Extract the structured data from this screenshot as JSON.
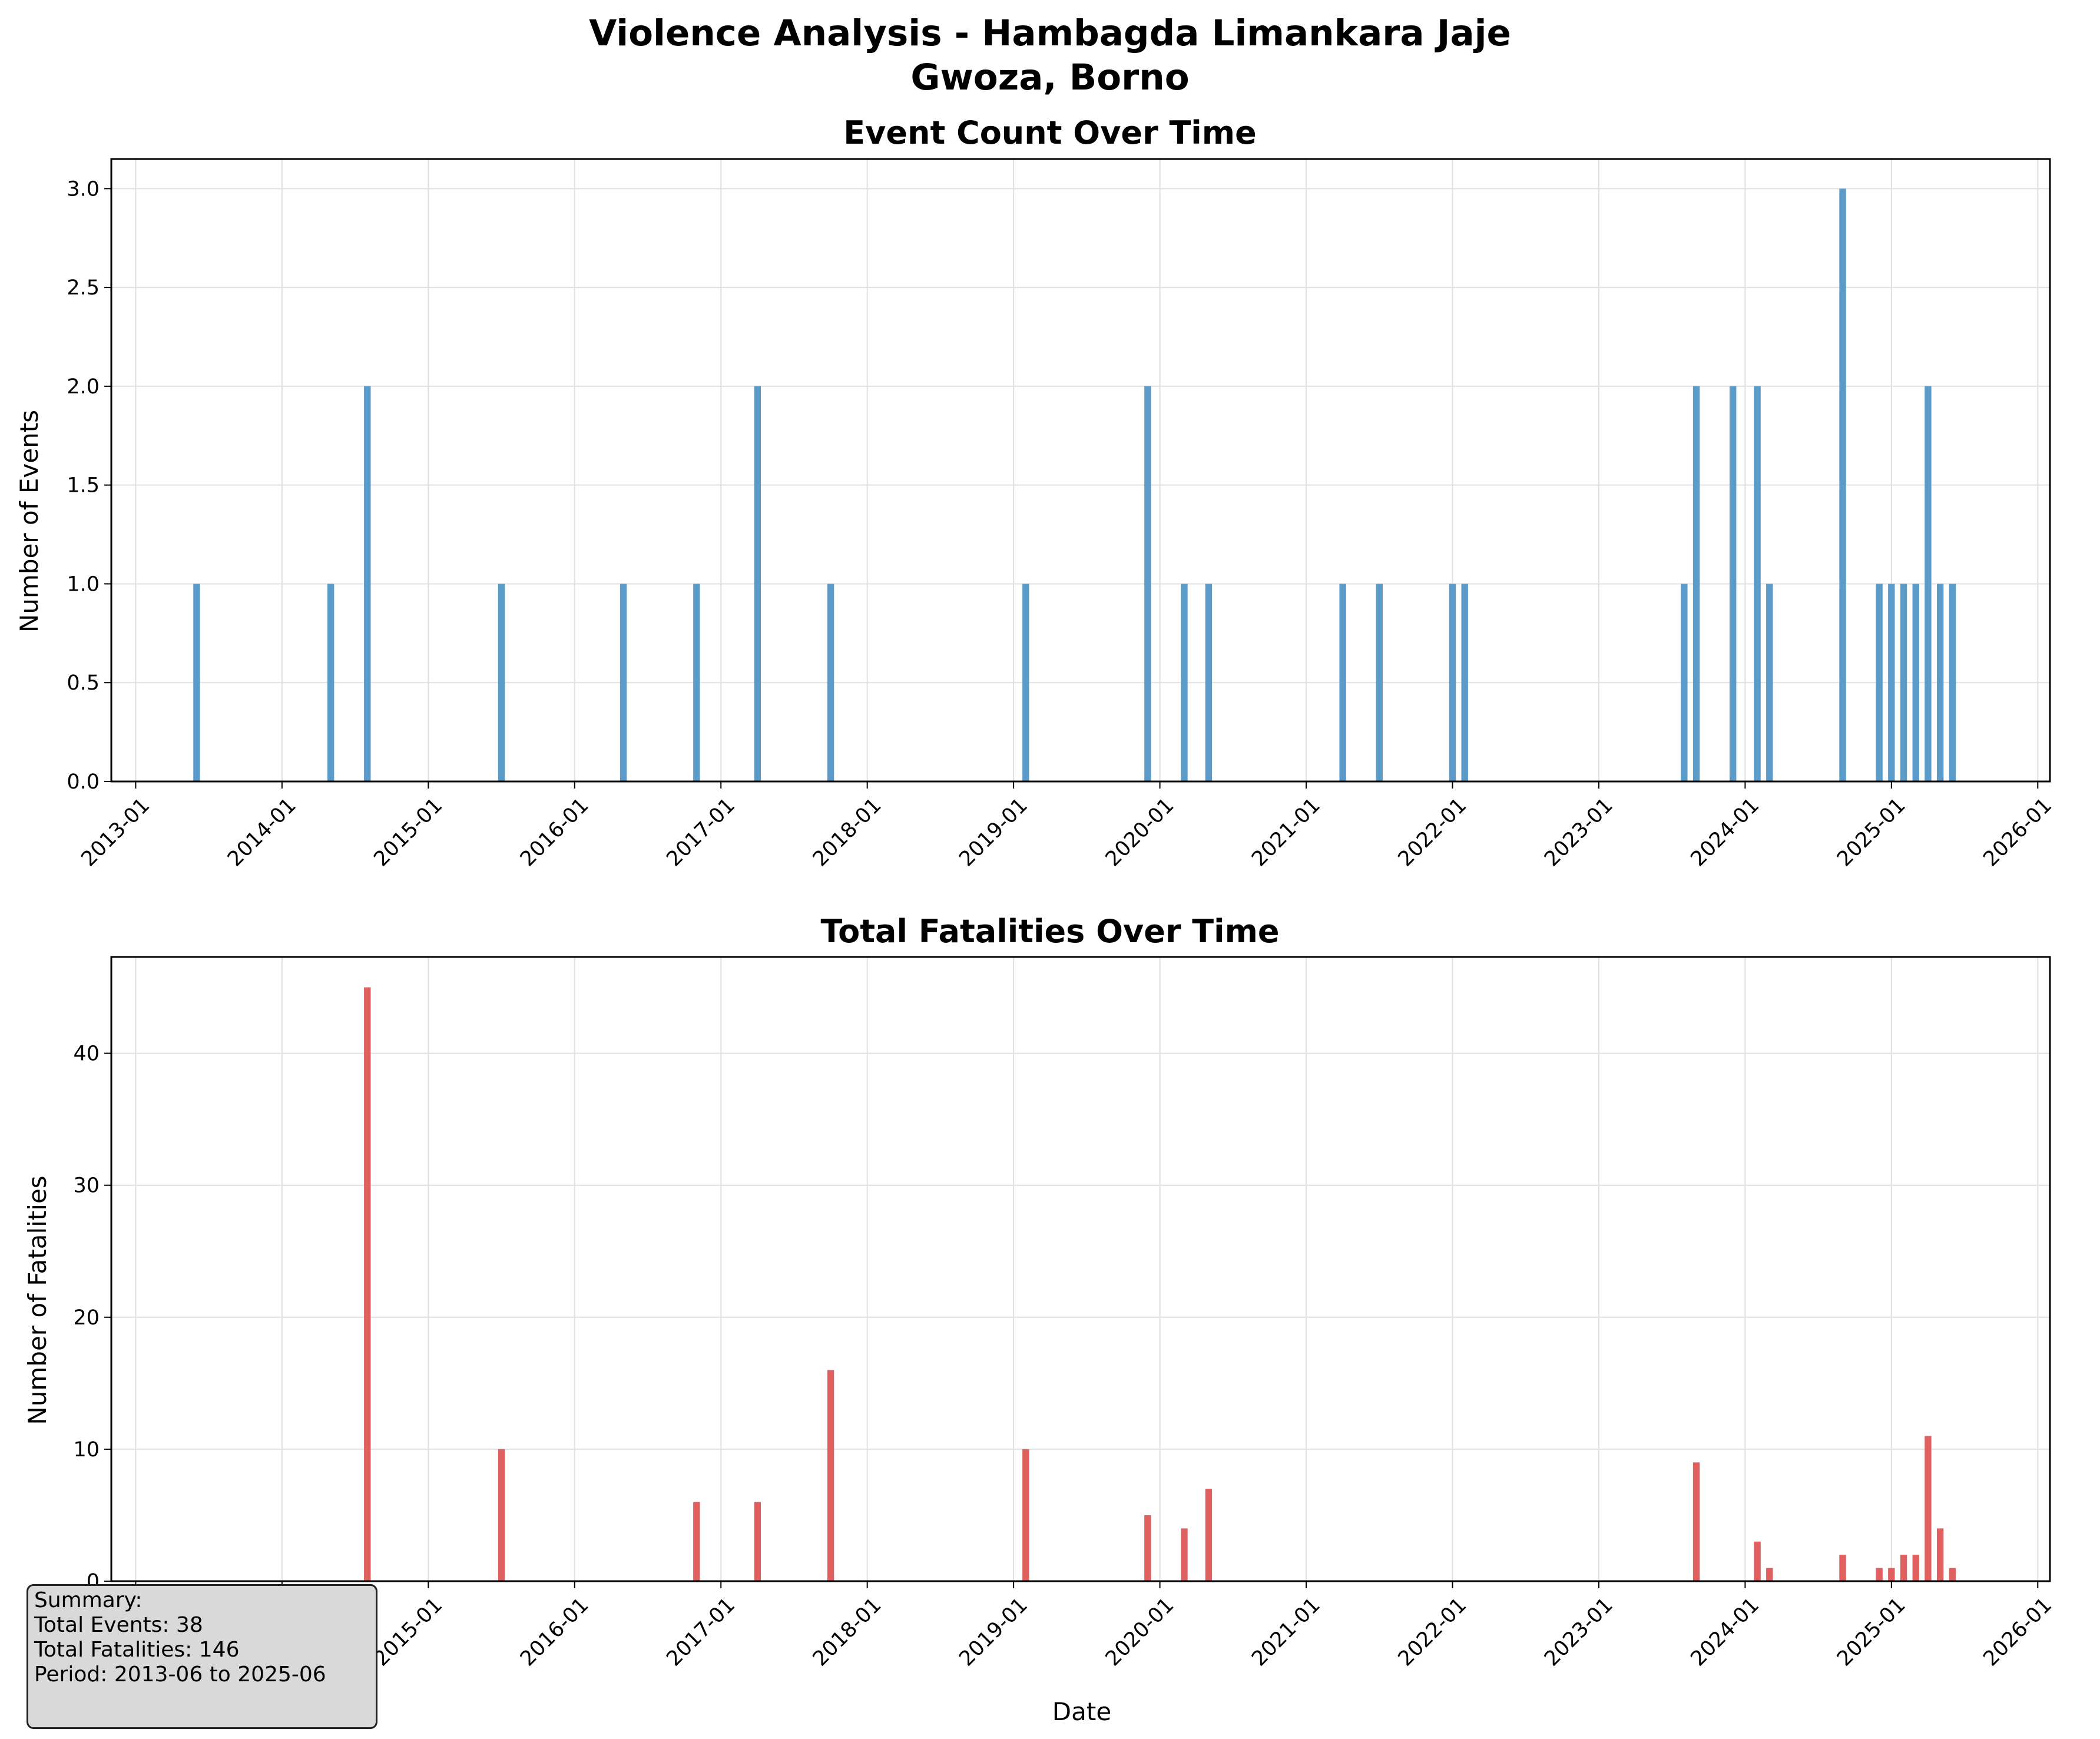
{
  "suptitle_line1": "Violence Analysis - Hambagda Limankara Jaje",
  "suptitle_line2": "Gwoza, Borno",
  "x_tick_labels": [
    "2013-01",
    "2014-01",
    "2015-01",
    "2016-01",
    "2017-01",
    "2018-01",
    "2019-01",
    "2020-01",
    "2021-01",
    "2022-01",
    "2023-01",
    "2024-01",
    "2025-01",
    "2026-01"
  ],
  "colors": {
    "events_bar": "#5b9bc9",
    "fatalities_bar": "#e06060",
    "grid": "#e0e0e0",
    "summary_bg": "#d9d9d9"
  },
  "summary": {
    "heading": "Summary:",
    "total_events": "Total Events: 38",
    "total_fatalities": "Total Fatalities: 146",
    "period": "Period: 2013-06 to 2025-06"
  },
  "chart_data": [
    {
      "type": "bar",
      "title": "Event Count Over Time",
      "xlabel": "",
      "ylabel": "Number of Events",
      "x_is_date": true,
      "xlim": [
        "2012-11",
        "2026-02"
      ],
      "ylim": [
        0,
        3.15
      ],
      "y_ticks": [
        0.0,
        0.5,
        1.0,
        1.5,
        2.0,
        2.5,
        3.0
      ],
      "y_tick_labels": [
        "0.0",
        "0.5",
        "1.0",
        "1.5",
        "2.0",
        "2.5",
        "3.0"
      ],
      "grid": true,
      "x": [
        "2013-06",
        "2014-05",
        "2014-08",
        "2015-07",
        "2016-05",
        "2016-11",
        "2017-04",
        "2017-10",
        "2019-02",
        "2019-12",
        "2020-03",
        "2020-05",
        "2021-04",
        "2021-07",
        "2022-01",
        "2022-02",
        "2023-08",
        "2023-09",
        "2023-12",
        "2024-02",
        "2024-03",
        "2024-09",
        "2024-12",
        "2025-01",
        "2025-02",
        "2025-03",
        "2025-04",
        "2025-05",
        "2025-06"
      ],
      "values": [
        1,
        1,
        2,
        1,
        1,
        1,
        2,
        1,
        1,
        2,
        1,
        1,
        1,
        1,
        1,
        1,
        1,
        2,
        2,
        2,
        1,
        3,
        1,
        1,
        1,
        1,
        2,
        1,
        1
      ]
    },
    {
      "type": "bar",
      "title": "Total Fatalities Over Time",
      "xlabel": "Date",
      "ylabel": "Number of Fatalities",
      "x_is_date": true,
      "xlim": [
        "2012-11",
        "2026-02"
      ],
      "ylim": [
        0,
        47.3
      ],
      "y_ticks": [
        0,
        10,
        20,
        30,
        40
      ],
      "y_tick_labels": [
        "0",
        "10",
        "20",
        "30",
        "40"
      ],
      "grid": true,
      "x": [
        "2013-06",
        "2014-05",
        "2014-08",
        "2015-07",
        "2016-05",
        "2016-11",
        "2017-04",
        "2017-10",
        "2019-02",
        "2019-12",
        "2020-03",
        "2020-05",
        "2021-04",
        "2021-07",
        "2022-01",
        "2022-02",
        "2023-08",
        "2023-09",
        "2023-12",
        "2024-02",
        "2024-03",
        "2024-09",
        "2024-12",
        "2025-01",
        "2025-02",
        "2025-03",
        "2025-04",
        "2025-05",
        "2025-06"
      ],
      "values": [
        0,
        0,
        45,
        10,
        0,
        6,
        6,
        16,
        10,
        5,
        4,
        7,
        0,
        0,
        0,
        0,
        0,
        9,
        0,
        3,
        1,
        2,
        1,
        1,
        2,
        2,
        11,
        4,
        1
      ]
    }
  ]
}
